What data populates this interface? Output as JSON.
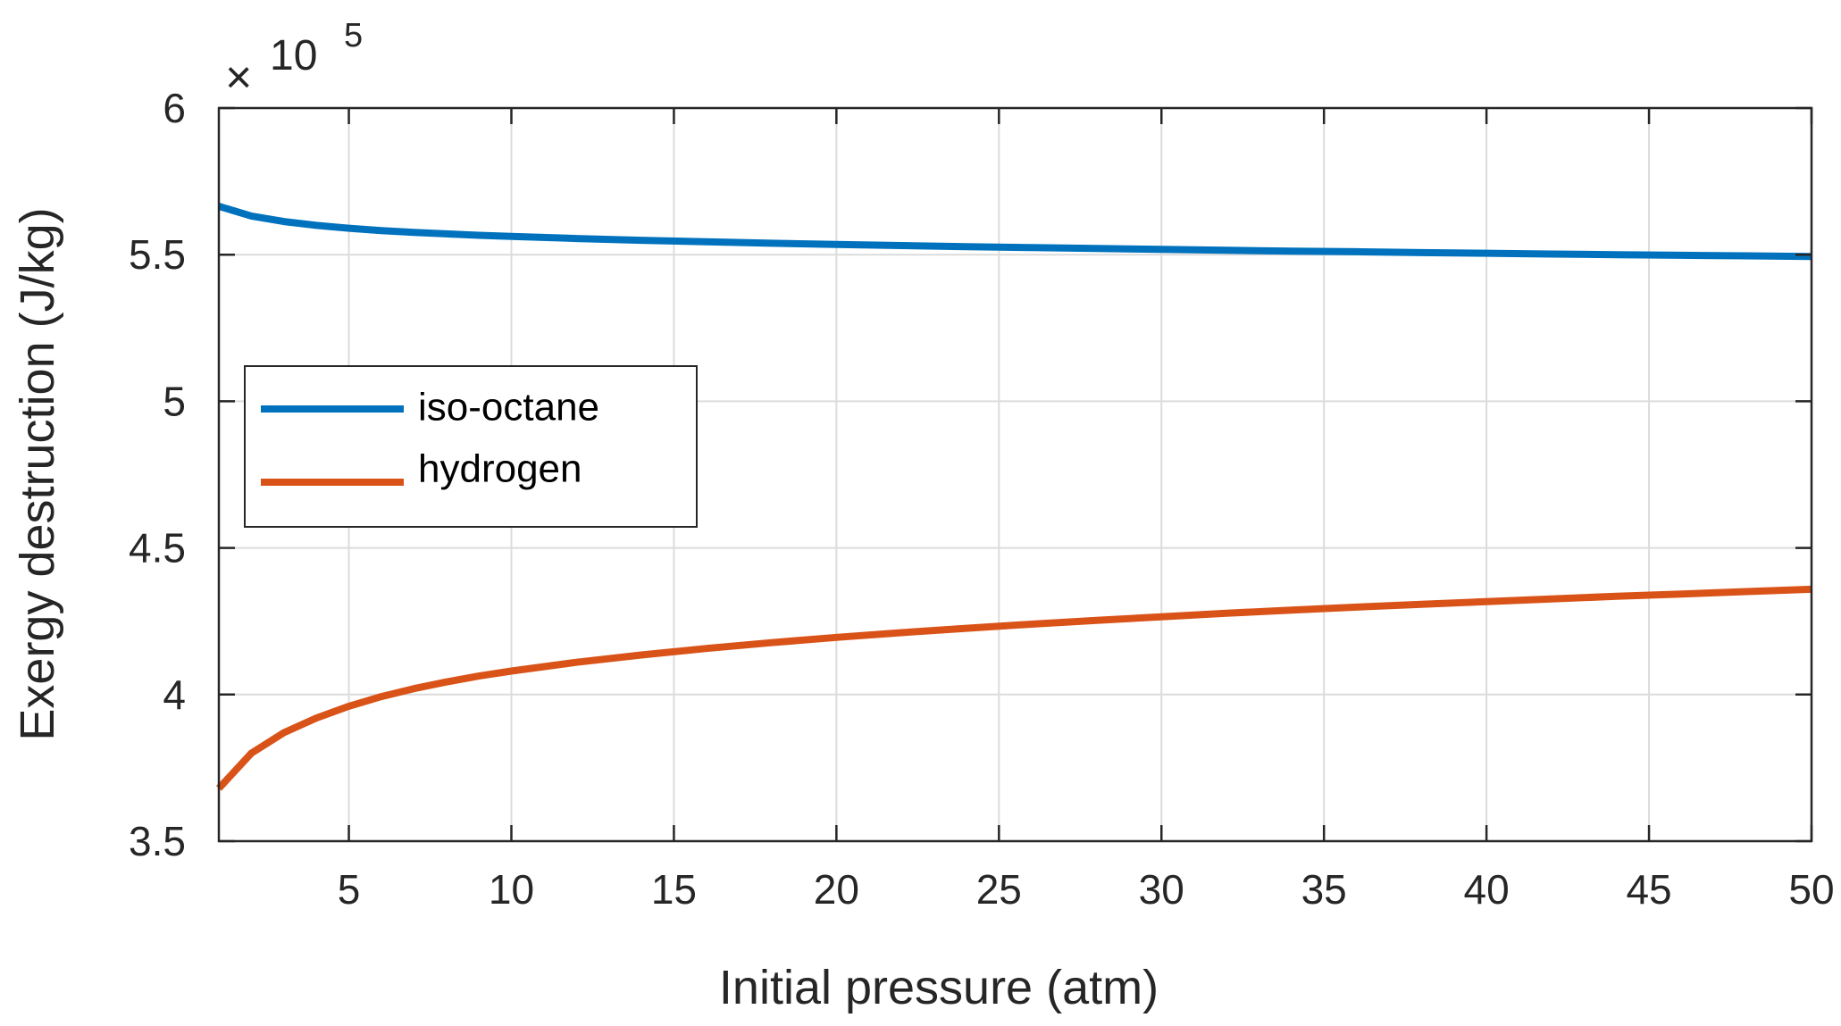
{
  "chart_data": {
    "type": "line",
    "title": "",
    "xlabel": "Initial pressure (atm)",
    "ylabel": "Exergy destruction (J/kg)",
    "xlim": [
      1,
      50
    ],
    "ylim": [
      3.5,
      6
    ],
    "y_multiplier_symbol": "×",
    "y_multiplier_base": "10",
    "y_multiplier_exponent": "5",
    "xticks": [
      5,
      10,
      15,
      20,
      25,
      30,
      35,
      40,
      45,
      50
    ],
    "xtick_labels": [
      "5",
      "10",
      "15",
      "20",
      "25",
      "30",
      "35",
      "40",
      "45",
      "50"
    ],
    "yticks": [
      3.5,
      4,
      4.5,
      5,
      5.5,
      6
    ],
    "ytick_labels": [
      "3.5",
      "4",
      "4.5",
      "5",
      "5.5",
      "6"
    ],
    "grid": true,
    "legend_position": "left, mid-upper",
    "x": [
      1,
      2,
      3,
      4,
      5,
      6,
      7,
      8,
      9,
      10,
      12,
      14,
      16,
      18,
      20,
      22,
      24,
      26,
      28,
      30,
      32,
      34,
      36,
      38,
      40,
      42,
      44,
      46,
      48,
      50
    ],
    "series": [
      {
        "name": "iso-octane",
        "color": "#0072BD",
        "values": [
          5.665,
          5.632,
          5.613,
          5.6,
          5.59,
          5.582,
          5.576,
          5.571,
          5.566,
          5.562,
          5.555,
          5.549,
          5.544,
          5.539,
          5.535,
          5.531,
          5.527,
          5.524,
          5.521,
          5.518,
          5.515,
          5.512,
          5.51,
          5.507,
          5.505,
          5.502,
          5.5,
          5.498,
          5.496,
          5.494
        ]
      },
      {
        "name": "hydrogen",
        "color": "#D95319",
        "values": [
          3.68,
          3.8,
          3.87,
          3.92,
          3.96,
          3.993,
          4.02,
          4.043,
          4.063,
          4.08,
          4.11,
          4.135,
          4.157,
          4.177,
          4.195,
          4.211,
          4.226,
          4.24,
          4.253,
          4.265,
          4.277,
          4.288,
          4.298,
          4.308,
          4.317,
          4.326,
          4.335,
          4.343,
          4.351,
          4.359
        ]
      }
    ]
  }
}
